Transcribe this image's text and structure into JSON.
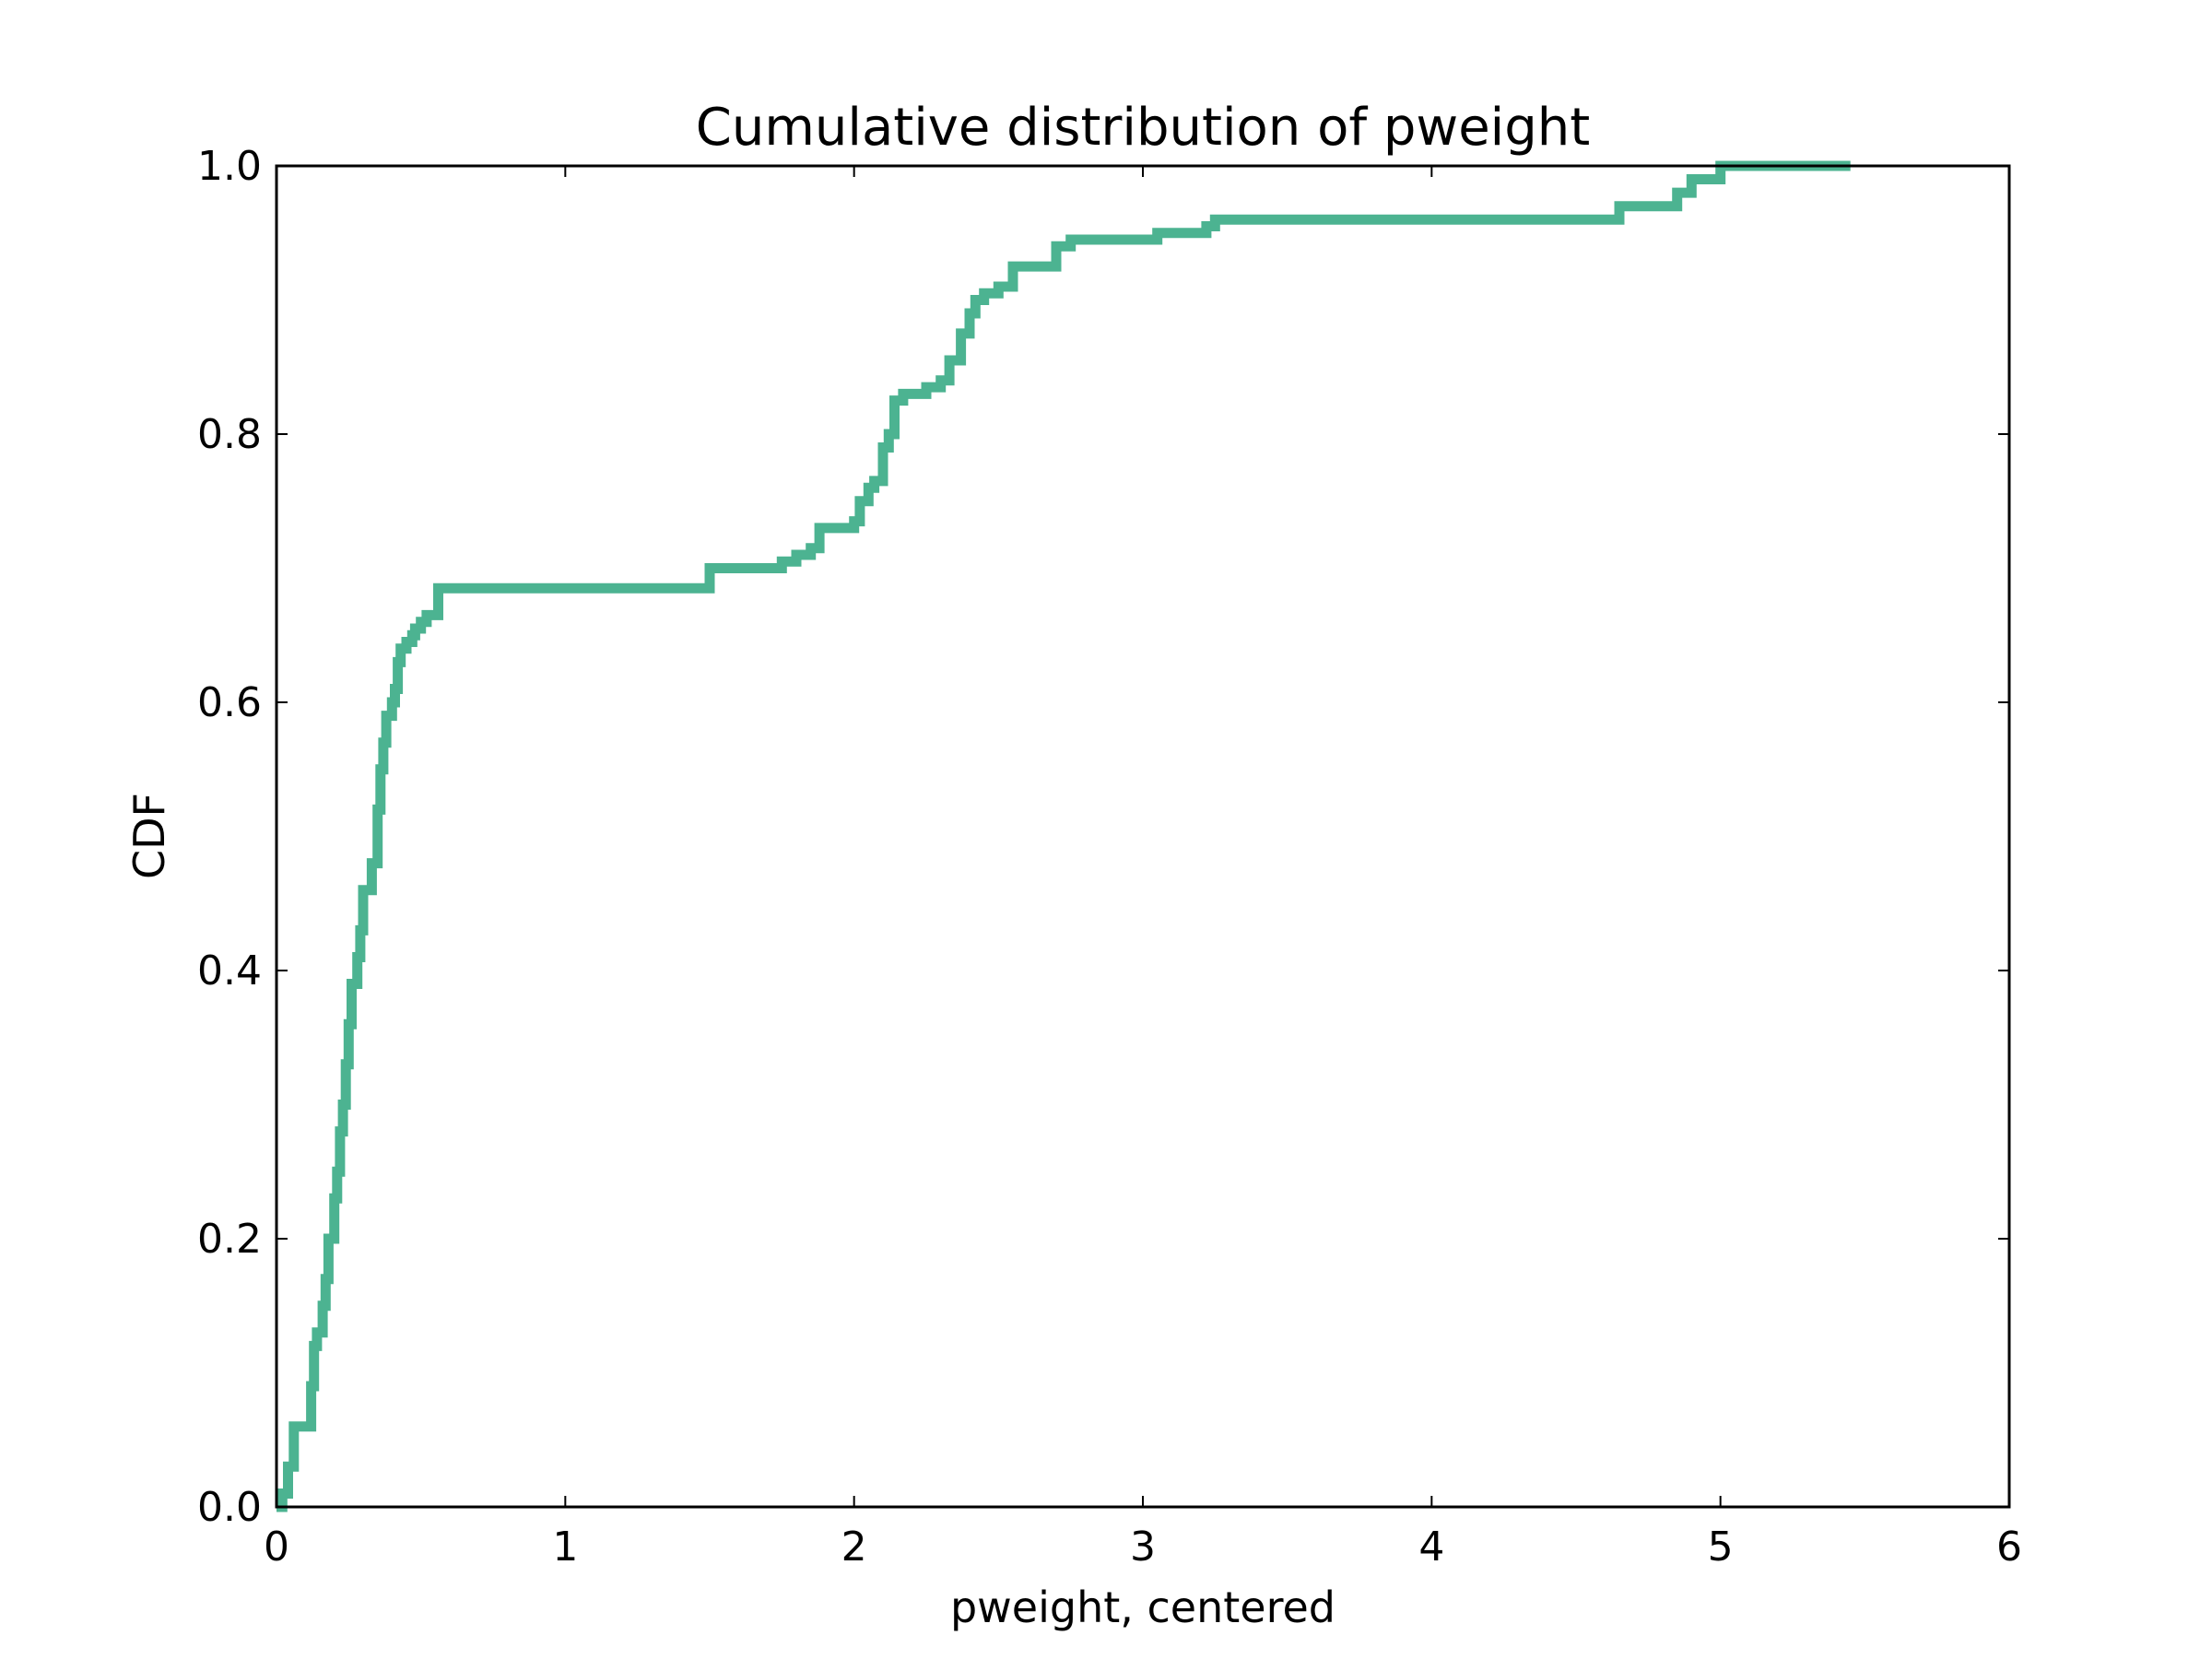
{
  "chart_data": {
    "type": "line",
    "title": "Cumulative distribution of pweight",
    "xlabel": "pweight, centered",
    "ylabel": "CDF",
    "xlim": [
      0,
      6
    ],
    "ylim": [
      0,
      1
    ],
    "x_ticks": [
      "0",
      "1",
      "2",
      "3",
      "4",
      "5",
      "6"
    ],
    "y_ticks": [
      "0.0",
      "0.2",
      "0.4",
      "0.6",
      "0.8",
      "1.0"
    ],
    "grid": false,
    "legend": "none",
    "series": [
      {
        "color": "#4cb391",
        "step": true,
        "x": [
          0.0,
          0.02,
          0.04,
          0.06,
          0.07,
          0.12,
          0.13,
          0.14,
          0.16,
          0.17,
          0.18,
          0.2,
          0.21,
          0.22,
          0.23,
          0.24,
          0.25,
          0.26,
          0.27,
          0.28,
          0.29,
          0.3,
          0.33,
          0.35,
          0.36,
          0.37,
          0.38,
          0.4,
          0.41,
          0.42,
          0.43,
          0.45,
          0.46,
          0.47,
          0.48,
          0.5,
          0.52,
          0.55,
          0.56,
          0.57,
          0.6,
          0.63,
          0.68,
          0.72,
          0.75,
          1.0,
          1.25,
          1.5,
          1.75,
          1.8,
          1.85,
          1.88,
          2.0,
          2.02,
          2.05,
          2.07,
          2.1,
          2.12,
          2.14,
          2.17,
          2.2,
          2.25,
          2.3,
          2.33,
          2.37,
          2.4,
          2.42,
          2.45,
          2.47,
          2.5,
          2.55,
          2.6,
          2.7,
          2.75,
          3.0,
          3.05,
          3.22,
          3.25,
          3.5,
          4.0,
          4.5,
          4.65,
          4.85,
          4.9,
          5.0,
          5.45
        ],
        "y": [
          0.0,
          0.01,
          0.03,
          0.06,
          0.06,
          0.09,
          0.12,
          0.13,
          0.15,
          0.17,
          0.2,
          0.23,
          0.25,
          0.28,
          0.3,
          0.33,
          0.36,
          0.39,
          0.39,
          0.41,
          0.43,
          0.46,
          0.48,
          0.52,
          0.55,
          0.57,
          0.59,
          0.6,
          0.61,
          0.63,
          0.64,
          0.645,
          0.645,
          0.65,
          0.655,
          0.66,
          0.665,
          0.665,
          0.685,
          0.685,
          0.685,
          0.685,
          0.685,
          0.685,
          0.685,
          0.685,
          0.685,
          0.7,
          0.705,
          0.71,
          0.715,
          0.73,
          0.735,
          0.75,
          0.76,
          0.765,
          0.79,
          0.8,
          0.825,
          0.83,
          0.83,
          0.835,
          0.84,
          0.855,
          0.875,
          0.89,
          0.9,
          0.905,
          0.905,
          0.91,
          0.925,
          0.925,
          0.94,
          0.945,
          0.945,
          0.95,
          0.955,
          0.96,
          0.96,
          0.96,
          0.96,
          0.97,
          0.98,
          0.99,
          1.0,
          1.0
        ]
      }
    ]
  }
}
